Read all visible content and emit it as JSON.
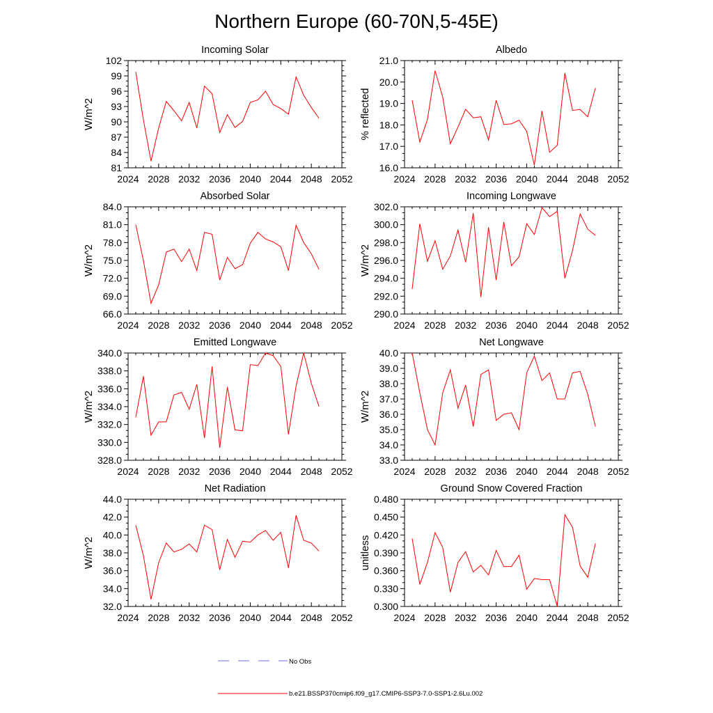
{
  "figure_title": "Northern Europe (60-70N,5-45E)",
  "legend": [
    {
      "label": "No Obs",
      "color": "#6a6af0",
      "style": "dashed"
    },
    {
      "label": "b.e21.BSSP370cmip6.f09_g17.CMIP6-SSP3-7.0-SSP1-2.6Lu.002",
      "color": "#ff0000",
      "style": "solid"
    }
  ],
  "chart_data": [
    {
      "type": "line",
      "title": "Incoming Solar",
      "xlabel": "",
      "ylabel": "W/m^2",
      "xlim": [
        2024,
        2052
      ],
      "xticks": [
        "2024",
        "2028",
        "2032",
        "2036",
        "2040",
        "2044",
        "2048",
        "2052"
      ],
      "ylim": [
        81,
        102
      ],
      "yticks": [
        "81",
        "84",
        "87",
        "90",
        "93",
        "96",
        "99",
        "102"
      ],
      "grid": false,
      "color": "#ff0000",
      "x": [
        2025,
        2026,
        2027,
        2028,
        2029,
        2030,
        2031,
        2032,
        2033,
        2034,
        2035,
        2036,
        2037,
        2038,
        2039,
        2040,
        2041,
        2042,
        2043,
        2044,
        2045,
        2046,
        2047,
        2048,
        2049
      ],
      "values": [
        99.8,
        90.4,
        82.3,
        88.8,
        94.0,
        92.2,
        90.2,
        93.8,
        88.8,
        97.0,
        95.5,
        87.9,
        91.4,
        88.9,
        90.1,
        93.8,
        94.3,
        96.0,
        93.4,
        92.6,
        91.5,
        98.8,
        95.2,
        92.8,
        90.7
      ]
    },
    {
      "type": "line",
      "title": "Albedo",
      "xlabel": "",
      "ylabel": "% reflected",
      "xlim": [
        2024,
        2052
      ],
      "xticks": [
        "2024",
        "2028",
        "2032",
        "2036",
        "2040",
        "2044",
        "2048",
        "2052"
      ],
      "ylim": [
        16.0,
        21.0
      ],
      "yticks": [
        "16.0",
        "17.0",
        "18.0",
        "19.0",
        "20.0",
        "21.0"
      ],
      "grid": false,
      "color": "#ff0000",
      "x": [
        2025,
        2026,
        2027,
        2028,
        2029,
        2030,
        2031,
        2032,
        2033,
        2034,
        2035,
        2036,
        2037,
        2038,
        2039,
        2040,
        2041,
        2042,
        2043,
        2044,
        2045,
        2046,
        2047,
        2048,
        2049
      ],
      "values": [
        19.15,
        17.2,
        18.25,
        20.53,
        19.3,
        17.12,
        17.9,
        18.73,
        18.33,
        18.38,
        17.3,
        19.15,
        18.02,
        18.05,
        18.22,
        17.7,
        16.12,
        18.65,
        16.72,
        17.05,
        20.42,
        18.68,
        18.72,
        18.38,
        19.72
      ]
    },
    {
      "type": "line",
      "title": "Absorbed Solar",
      "xlabel": "",
      "ylabel": "W/m^2",
      "xlim": [
        2024,
        2052
      ],
      "xticks": [
        "2024",
        "2028",
        "2032",
        "2036",
        "2040",
        "2044",
        "2048",
        "2052"
      ],
      "ylim": [
        66.0,
        84.0
      ],
      "yticks": [
        "66.0",
        "69.0",
        "72.0",
        "75.0",
        "78.0",
        "81.0",
        "84.0"
      ],
      "grid": false,
      "color": "#ff0000",
      "x": [
        2025,
        2026,
        2027,
        2028,
        2029,
        2030,
        2031,
        2032,
        2033,
        2034,
        2035,
        2036,
        2037,
        2038,
        2039,
        2040,
        2041,
        2042,
        2043,
        2044,
        2045,
        2046,
        2047,
        2048,
        2049
      ],
      "values": [
        81.0,
        75.0,
        67.8,
        70.9,
        76.4,
        76.9,
        74.8,
        76.9,
        73.3,
        79.7,
        79.4,
        71.7,
        75.5,
        73.6,
        74.3,
        77.9,
        79.7,
        78.6,
        78.1,
        77.3,
        73.3,
        80.9,
        78.0,
        76.1,
        73.5
      ]
    },
    {
      "type": "line",
      "title": "Incoming Longwave",
      "xlabel": "",
      "ylabel": "W/m^2",
      "xlim": [
        2024,
        2052
      ],
      "xticks": [
        "2024",
        "2028",
        "2032",
        "2036",
        "2040",
        "2044",
        "2048",
        "2052"
      ],
      "ylim": [
        290.0,
        302.0
      ],
      "yticks": [
        "290.0",
        "292.0",
        "294.0",
        "296.0",
        "298.0",
        "300.0",
        "302.0"
      ],
      "grid": false,
      "color": "#ff0000",
      "x": [
        2025,
        2026,
        2027,
        2028,
        2029,
        2030,
        2031,
        2032,
        2033,
        2034,
        2035,
        2036,
        2037,
        2038,
        2039,
        2040,
        2041,
        2042,
        2043,
        2044,
        2045,
        2046,
        2047,
        2048,
        2049
      ],
      "values": [
        292.8,
        300.1,
        295.9,
        298.2,
        295.0,
        296.5,
        299.4,
        295.8,
        301.3,
        291.9,
        299.7,
        293.8,
        300.3,
        295.4,
        296.4,
        300.1,
        298.9,
        301.9,
        300.9,
        301.5,
        294.0,
        297.1,
        301.2,
        299.5,
        298.8
      ]
    },
    {
      "type": "line",
      "title": "Emitted Longwave",
      "xlabel": "",
      "ylabel": "W/m^2",
      "xlim": [
        2024,
        2052
      ],
      "xticks": [
        "2024",
        "2028",
        "2032",
        "2036",
        "2040",
        "2044",
        "2048",
        "2052"
      ],
      "ylim": [
        328.0,
        340.0
      ],
      "yticks": [
        "328.0",
        "330.0",
        "332.0",
        "334.0",
        "336.0",
        "338.0",
        "340.0"
      ],
      "grid": false,
      "color": "#ff0000",
      "x": [
        2025,
        2026,
        2027,
        2028,
        2029,
        2030,
        2031,
        2032,
        2033,
        2034,
        2035,
        2036,
        2037,
        2038,
        2039,
        2040,
        2041,
        2042,
        2043,
        2044,
        2045,
        2046,
        2047,
        2048,
        2049
      ],
      "values": [
        332.8,
        337.4,
        330.8,
        332.3,
        332.3,
        335.3,
        335.6,
        333.7,
        336.5,
        330.5,
        338.5,
        329.4,
        336.2,
        331.4,
        331.3,
        338.7,
        338.6,
        340.0,
        339.7,
        338.5,
        330.9,
        336.3,
        340.0,
        336.6,
        334.0
      ]
    },
    {
      "type": "line",
      "title": "Net Longwave",
      "xlabel": "",
      "ylabel": "W/m^2",
      "xlim": [
        2024,
        2052
      ],
      "xticks": [
        "2024",
        "2028",
        "2032",
        "2036",
        "2040",
        "2044",
        "2048",
        "2052"
      ],
      "ylim": [
        33.0,
        40.0
      ],
      "yticks": [
        "33.0",
        "34.0",
        "35.0",
        "36.0",
        "37.0",
        "38.0",
        "39.0",
        "40.0"
      ],
      "grid": false,
      "color": "#ff0000",
      "x": [
        2025,
        2026,
        2027,
        2028,
        2029,
        2030,
        2031,
        2032,
        2033,
        2034,
        2035,
        2036,
        2037,
        2038,
        2039,
        2040,
        2041,
        2042,
        2043,
        2044,
        2045,
        2046,
        2047,
        2048,
        2049
      ],
      "values": [
        40.0,
        37.4,
        35.0,
        34.0,
        37.4,
        38.9,
        36.4,
        37.9,
        35.2,
        38.6,
        38.9,
        35.6,
        36.0,
        36.1,
        35.0,
        38.7,
        39.8,
        38.2,
        38.7,
        37.0,
        37.0,
        38.7,
        38.8,
        37.3,
        35.2
      ]
    },
    {
      "type": "line",
      "title": "Net Radiation",
      "xlabel": "",
      "ylabel": "W/m^2",
      "xlim": [
        2024,
        2052
      ],
      "xticks": [
        "2024",
        "2028",
        "2032",
        "2036",
        "2040",
        "2044",
        "2048",
        "2052"
      ],
      "ylim": [
        32.0,
        44.0
      ],
      "yticks": [
        "32.0",
        "34.0",
        "36.0",
        "38.0",
        "40.0",
        "42.0",
        "44.0"
      ],
      "grid": false,
      "color": "#ff0000",
      "x": [
        2025,
        2026,
        2027,
        2028,
        2029,
        2030,
        2031,
        2032,
        2033,
        2034,
        2035,
        2036,
        2037,
        2038,
        2039,
        2040,
        2041,
        2042,
        2043,
        2044,
        2045,
        2046,
        2047,
        2048,
        2049
      ],
      "values": [
        41.1,
        37.7,
        32.8,
        36.9,
        39.1,
        38.1,
        38.4,
        39.0,
        38.1,
        41.1,
        40.6,
        36.1,
        39.5,
        37.5,
        39.3,
        39.2,
        40.0,
        40.5,
        39.4,
        40.3,
        36.3,
        42.2,
        39.4,
        39.1,
        38.2
      ]
    },
    {
      "type": "line",
      "title": "Ground Snow Covered Fraction",
      "xlabel": "",
      "ylabel": "unitless",
      "xlim": [
        2024,
        2052
      ],
      "xticks": [
        "2024",
        "2028",
        "2032",
        "2036",
        "2040",
        "2044",
        "2048",
        "2052"
      ],
      "ylim": [
        0.3,
        0.48
      ],
      "yticks": [
        "0.300",
        "0.330",
        "0.360",
        "0.390",
        "0.420",
        "0.450",
        "0.480"
      ],
      "grid": false,
      "color": "#ff0000",
      "x": [
        2025,
        2026,
        2027,
        2028,
        2029,
        2030,
        2031,
        2032,
        2033,
        2034,
        2035,
        2036,
        2037,
        2038,
        2039,
        2040,
        2041,
        2042,
        2043,
        2044,
        2045,
        2046,
        2047,
        2048,
        2049
      ],
      "values": [
        0.414,
        0.337,
        0.374,
        0.424,
        0.399,
        0.324,
        0.374,
        0.392,
        0.358,
        0.369,
        0.353,
        0.394,
        0.367,
        0.367,
        0.386,
        0.329,
        0.347,
        0.345,
        0.345,
        0.3,
        0.454,
        0.433,
        0.368,
        0.349,
        0.406
      ]
    }
  ]
}
